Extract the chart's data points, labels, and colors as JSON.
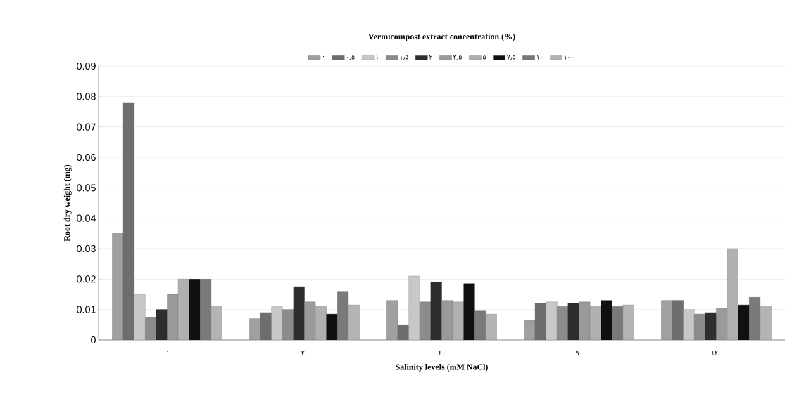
{
  "chart_data": {
    "type": "bar",
    "title": "Vermicompost extract concentration (%)",
    "legend_title": null,
    "xlabel": "Salinity levels (mM NaCl)",
    "ylabel": "Root dry weight (mg)",
    "categories": [
      "۰",
      "۳۰",
      "۶۰",
      "۹۰",
      "۱۲۰"
    ],
    "series": [
      {
        "name": "۰",
        "color": "#a0a0a0",
        "values": [
          0.035,
          0.007,
          0.013,
          0.0065,
          0.013
        ]
      },
      {
        "name": "۰٫۵",
        "color": "#6e6e6e",
        "values": [
          0.078,
          0.009,
          0.005,
          0.012,
          0.013
        ]
      },
      {
        "name": "۱",
        "color": "#c8c8c8",
        "values": [
          0.015,
          0.011,
          0.021,
          0.0125,
          0.01
        ]
      },
      {
        "name": "۱٫۵",
        "color": "#8c8c8c",
        "values": [
          0.0075,
          0.01,
          0.0125,
          0.011,
          0.0085
        ]
      },
      {
        "name": "۲",
        "color": "#2e2e2e",
        "values": [
          0.01,
          0.0175,
          0.019,
          0.012,
          0.009
        ]
      },
      {
        "name": "۲٫۵",
        "color": "#9a9a9a",
        "values": [
          0.015,
          0.0125,
          0.013,
          0.0125,
          0.0105
        ]
      },
      {
        "name": "۵",
        "color": "#b0b0b0",
        "values": [
          0.02,
          0.011,
          0.0125,
          0.011,
          0.03
        ]
      },
      {
        "name": "۷٫۵",
        "color": "#101010",
        "values": [
          0.02,
          0.0085,
          0.0185,
          0.013,
          0.0115
        ]
      },
      {
        "name": "۱۰",
        "color": "#7a7a7a",
        "values": [
          0.02,
          0.016,
          0.0095,
          0.011,
          0.014
        ]
      },
      {
        "name": "۱۰۰",
        "color": "#b4b4b4",
        "values": [
          0.011,
          0.0115,
          0.0085,
          0.0115,
          0.011
        ]
      }
    ],
    "ylim": [
      0,
      0.09
    ],
    "yticks": [
      0,
      0.01,
      0.02,
      0.03,
      0.04,
      0.05,
      0.06,
      0.07,
      0.08,
      0.09
    ],
    "grid": "y",
    "legend": "top"
  }
}
